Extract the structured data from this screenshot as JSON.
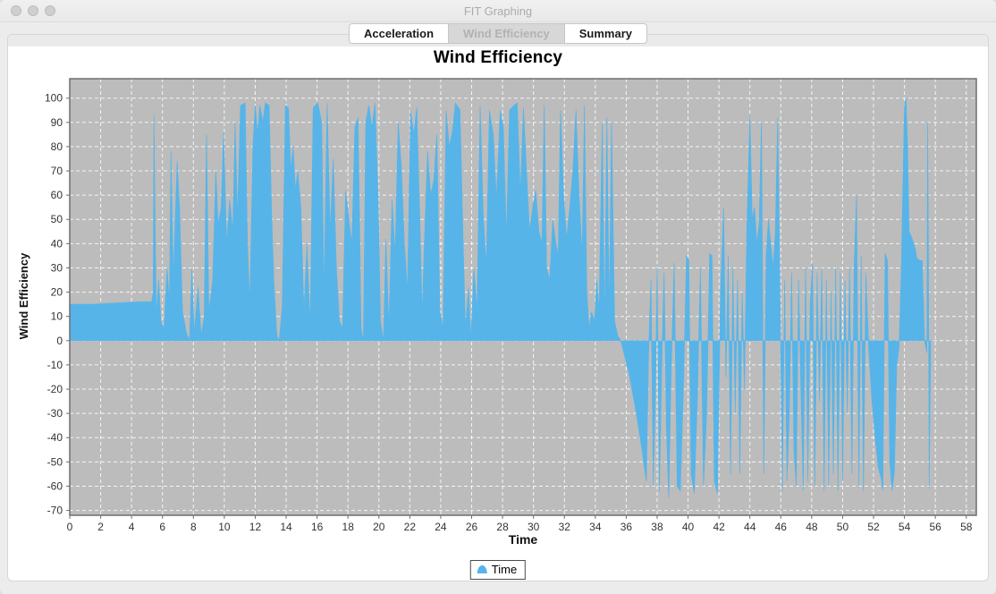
{
  "window": {
    "title": "FIT Graphing"
  },
  "tabs": [
    {
      "label": "Acceleration",
      "selected": false
    },
    {
      "label": "Wind Efficiency",
      "selected": true
    },
    {
      "label": "Summary",
      "selected": false
    }
  ],
  "chart_data": {
    "type": "area",
    "title": "Wind Efficiency",
    "xlabel": "Time",
    "ylabel": "Wind Efficiency",
    "plot_bg": "#bcbcbc",
    "grid": {
      "on": true,
      "color": "#ffffff",
      "style": "dashed"
    },
    "axis_color": "#6e6e6e",
    "tick_label_color": "#333333",
    "xlim": [
      0,
      58.65
    ],
    "ylim": [
      -72,
      108
    ],
    "xticks": [
      0,
      2,
      4,
      6,
      8,
      10,
      12,
      14,
      16,
      18,
      20,
      22,
      24,
      26,
      28,
      30,
      32,
      34,
      36,
      38,
      40,
      42,
      44,
      46,
      48,
      50,
      52,
      54,
      56,
      58
    ],
    "yticks": [
      -70,
      -60,
      -50,
      -40,
      -30,
      -20,
      -10,
      0,
      10,
      20,
      30,
      40,
      50,
      60,
      70,
      80,
      90,
      100
    ],
    "legend": {
      "position": "bottom",
      "entries": [
        {
          "label": "Time",
          "color": "#57b4e8",
          "symbol": "area-dome"
        }
      ]
    },
    "series": [
      {
        "name": "Time",
        "color": "#57b4e8",
        "baseline": 0,
        "points": [
          [
            0,
            15
          ],
          [
            1.5,
            15
          ],
          [
            3,
            15.5
          ],
          [
            4.5,
            16
          ],
          [
            5.3,
            16
          ],
          [
            5.4,
            20
          ],
          [
            5.45,
            93
          ],
          [
            5.5,
            60
          ],
          [
            5.6,
            10
          ],
          [
            5.75,
            25
          ],
          [
            5.9,
            8
          ],
          [
            6.1,
            5
          ],
          [
            6.3,
            30
          ],
          [
            6.45,
            15
          ],
          [
            6.55,
            78
          ],
          [
            6.7,
            25
          ],
          [
            6.95,
            74
          ],
          [
            7.1,
            55
          ],
          [
            7.3,
            12
          ],
          [
            7.55,
            3
          ],
          [
            7.75,
            0
          ],
          [
            7.9,
            30
          ],
          [
            8.05,
            3
          ],
          [
            8.3,
            22
          ],
          [
            8.5,
            2
          ],
          [
            8.7,
            10
          ],
          [
            8.85,
            85
          ],
          [
            9,
            12
          ],
          [
            9.25,
            25
          ],
          [
            9.45,
            70
          ],
          [
            9.6,
            48
          ],
          [
            9.8,
            55
          ],
          [
            9.95,
            86
          ],
          [
            10.15,
            40
          ],
          [
            10.35,
            58
          ],
          [
            10.55,
            45
          ],
          [
            10.7,
            90
          ],
          [
            10.85,
            50
          ],
          [
            11.05,
            97
          ],
          [
            11.35,
            98
          ],
          [
            11.5,
            40
          ],
          [
            11.65,
            15
          ],
          [
            11.85,
            80
          ],
          [
            12,
            97
          ],
          [
            12.15,
            85
          ],
          [
            12.3,
            97
          ],
          [
            12.5,
            90
          ],
          [
            12.65,
            98
          ],
          [
            12.9,
            97
          ],
          [
            13.05,
            55
          ],
          [
            13.2,
            25
          ],
          [
            13.4,
            2
          ],
          [
            13.55,
            0
          ],
          [
            13.75,
            14
          ],
          [
            13.95,
            97
          ],
          [
            14.15,
            96
          ],
          [
            14.3,
            70
          ],
          [
            14.45,
            80
          ],
          [
            14.6,
            62
          ],
          [
            14.75,
            70
          ],
          [
            14.95,
            55
          ],
          [
            15.15,
            12
          ],
          [
            15.35,
            40
          ],
          [
            15.55,
            5
          ],
          [
            15.75,
            96
          ],
          [
            16.05,
            98
          ],
          [
            16.3,
            90
          ],
          [
            16.45,
            18
          ],
          [
            16.65,
            98
          ],
          [
            16.85,
            45
          ],
          [
            17.05,
            75
          ],
          [
            17.25,
            30
          ],
          [
            17.45,
            8
          ],
          [
            17.65,
            5
          ],
          [
            17.85,
            62
          ],
          [
            18.05,
            50
          ],
          [
            18.25,
            40
          ],
          [
            18.45,
            88
          ],
          [
            18.65,
            92
          ],
          [
            18.85,
            5
          ],
          [
            19,
            0
          ],
          [
            19.15,
            90
          ],
          [
            19.35,
            97
          ],
          [
            19.55,
            88
          ],
          [
            19.75,
            98
          ],
          [
            19.95,
            60
          ],
          [
            20.1,
            8
          ],
          [
            20.3,
            0
          ],
          [
            20.45,
            42
          ],
          [
            20.65,
            5
          ],
          [
            20.85,
            58
          ],
          [
            21.05,
            35
          ],
          [
            21.25,
            90
          ],
          [
            21.45,
            72
          ],
          [
            21.65,
            40
          ],
          [
            21.85,
            20
          ],
          [
            22.05,
            95
          ],
          [
            22.25,
            85
          ],
          [
            22.45,
            96
          ],
          [
            22.65,
            50
          ],
          [
            22.8,
            10
          ],
          [
            22.95,
            42
          ],
          [
            23.15,
            78
          ],
          [
            23.35,
            60
          ],
          [
            23.55,
            66
          ],
          [
            23.75,
            85
          ],
          [
            23.95,
            12
          ],
          [
            24.15,
            5
          ],
          [
            24.35,
            95
          ],
          [
            24.55,
            80
          ],
          [
            24.75,
            86
          ],
          [
            24.95,
            98
          ],
          [
            25.25,
            95
          ],
          [
            25.45,
            40
          ],
          [
            25.6,
            5
          ],
          [
            25.8,
            22
          ],
          [
            25.95,
            0
          ],
          [
            26.15,
            30
          ],
          [
            26.35,
            12
          ],
          [
            26.55,
            97
          ],
          [
            26.75,
            52
          ],
          [
            26.95,
            30
          ],
          [
            27.15,
            95
          ],
          [
            27.4,
            85
          ],
          [
            27.6,
            58
          ],
          [
            27.85,
            95
          ],
          [
            28.05,
            88
          ],
          [
            28.25,
            42
          ],
          [
            28.45,
            95
          ],
          [
            28.75,
            97
          ],
          [
            28.95,
            98
          ],
          [
            29.15,
            60
          ],
          [
            29.35,
            96
          ],
          [
            29.55,
            70
          ],
          [
            29.75,
            45
          ],
          [
            29.95,
            55
          ],
          [
            30.15,
            62
          ],
          [
            30.35,
            45
          ],
          [
            30.55,
            40
          ],
          [
            30.7,
            97
          ],
          [
            30.85,
            30
          ],
          [
            31.05,
            25
          ],
          [
            31.25,
            50
          ],
          [
            31.45,
            40
          ],
          [
            31.6,
            35
          ],
          [
            31.75,
            95
          ],
          [
            31.95,
            60
          ],
          [
            32.15,
            42
          ],
          [
            32.35,
            55
          ],
          [
            32.55,
            70
          ],
          [
            32.75,
            95
          ],
          [
            32.95,
            60
          ],
          [
            33.15,
            35
          ],
          [
            33.3,
            97
          ],
          [
            33.45,
            20
          ],
          [
            33.6,
            5
          ],
          [
            33.75,
            12
          ],
          [
            33.95,
            8
          ],
          [
            34.1,
            25
          ],
          [
            34.25,
            12
          ],
          [
            34.45,
            90
          ],
          [
            34.6,
            5
          ],
          [
            34.75,
            92
          ],
          [
            34.9,
            10
          ],
          [
            35.05,
            90
          ],
          [
            35.25,
            8
          ],
          [
            35.45,
            2
          ],
          [
            35.65,
            0
          ],
          [
            36.2,
            -14
          ],
          [
            36.6,
            -28
          ],
          [
            37,
            -44
          ],
          [
            37.3,
            -58
          ],
          [
            37.45,
            -5
          ],
          [
            37.6,
            25
          ],
          [
            37.75,
            -60
          ],
          [
            37.9,
            -20
          ],
          [
            38,
            30
          ],
          [
            38.15,
            -62
          ],
          [
            38.3,
            -10
          ],
          [
            38.45,
            28
          ],
          [
            38.6,
            -35
          ],
          [
            38.75,
            -65
          ],
          [
            38.9,
            -15
          ],
          [
            39.1,
            32
          ],
          [
            39.3,
            -60
          ],
          [
            39.5,
            -62
          ],
          [
            39.7,
            -20
          ],
          [
            39.9,
            35
          ],
          [
            40.05,
            33
          ],
          [
            40.2,
            -55
          ],
          [
            40.4,
            -63
          ],
          [
            40.6,
            -25
          ],
          [
            40.8,
            30
          ],
          [
            41,
            -60
          ],
          [
            41.2,
            -30
          ],
          [
            41.4,
            36
          ],
          [
            41.55,
            35
          ],
          [
            41.7,
            -58
          ],
          [
            41.9,
            -63
          ],
          [
            42.1,
            20
          ],
          [
            42.3,
            55
          ],
          [
            42.45,
            -15
          ],
          [
            42.6,
            35
          ],
          [
            42.75,
            -55
          ],
          [
            42.9,
            30
          ],
          [
            43.05,
            -30
          ],
          [
            43.2,
            25
          ],
          [
            43.35,
            -55
          ],
          [
            43.5,
            20
          ],
          [
            43.65,
            -20
          ],
          [
            43.8,
            45
          ],
          [
            44,
            93
          ],
          [
            44.15,
            50
          ],
          [
            44.3,
            55
          ],
          [
            44.45,
            40
          ],
          [
            44.6,
            48
          ],
          [
            44.75,
            90
          ],
          [
            44.9,
            -55
          ],
          [
            45.05,
            35
          ],
          [
            45.2,
            50
          ],
          [
            45.35,
            40
          ],
          [
            45.5,
            30
          ],
          [
            45.65,
            45
          ],
          [
            45.8,
            92
          ],
          [
            45.95,
            20
          ],
          [
            46.1,
            -62
          ],
          [
            46.25,
            25
          ],
          [
            46.4,
            -58
          ],
          [
            46.55,
            -30
          ],
          [
            46.7,
            28
          ],
          [
            46.85,
            -45
          ],
          [
            47,
            -60
          ],
          [
            47.15,
            25
          ],
          [
            47.3,
            -20
          ],
          [
            47.45,
            -62
          ],
          [
            47.6,
            30
          ],
          [
            47.75,
            -58
          ],
          [
            47.9,
            15
          ],
          [
            48.05,
            32
          ],
          [
            48.2,
            -60
          ],
          [
            48.35,
            28
          ],
          [
            48.5,
            -25
          ],
          [
            48.65,
            30
          ],
          [
            48.8,
            -62
          ],
          [
            48.95,
            25
          ],
          [
            49.1,
            -60
          ],
          [
            49.25,
            20
          ],
          [
            49.4,
            -55
          ],
          [
            49.55,
            30
          ],
          [
            49.7,
            -62
          ],
          [
            49.85,
            28
          ],
          [
            50,
            -58
          ],
          [
            50.15,
            25
          ],
          [
            50.3,
            -30
          ],
          [
            50.45,
            30
          ],
          [
            50.6,
            -55
          ],
          [
            50.75,
            32
          ],
          [
            50.9,
            60
          ],
          [
            51.05,
            -60
          ],
          [
            51.2,
            35
          ],
          [
            51.35,
            -62
          ],
          [
            51.5,
            28
          ],
          [
            51.7,
            -5
          ],
          [
            51.9,
            -25
          ],
          [
            52.1,
            -40
          ],
          [
            52.3,
            -52
          ],
          [
            52.5,
            -57
          ],
          [
            52.6,
            -62
          ],
          [
            52.75,
            36
          ],
          [
            52.9,
            33
          ],
          [
            53.05,
            -50
          ],
          [
            53.2,
            -62
          ],
          [
            53.35,
            -54
          ],
          [
            53.5,
            -10
          ],
          [
            53.65,
            -3
          ],
          [
            53.8,
            30
          ],
          [
            54,
            97
          ],
          [
            54.1,
            100
          ],
          [
            54.2,
            80
          ],
          [
            54.3,
            45
          ],
          [
            54.5,
            42
          ],
          [
            54.7,
            38
          ],
          [
            54.8,
            34
          ],
          [
            55,
            33
          ],
          [
            55.15,
            33
          ],
          [
            55.3,
            0
          ],
          [
            55.45,
            -5
          ],
          [
            55.5,
            90
          ],
          [
            55.55,
            36
          ],
          [
            55.6,
            -61
          ],
          [
            55.65,
            -30
          ],
          [
            55.7,
            0
          ]
        ]
      }
    ]
  }
}
